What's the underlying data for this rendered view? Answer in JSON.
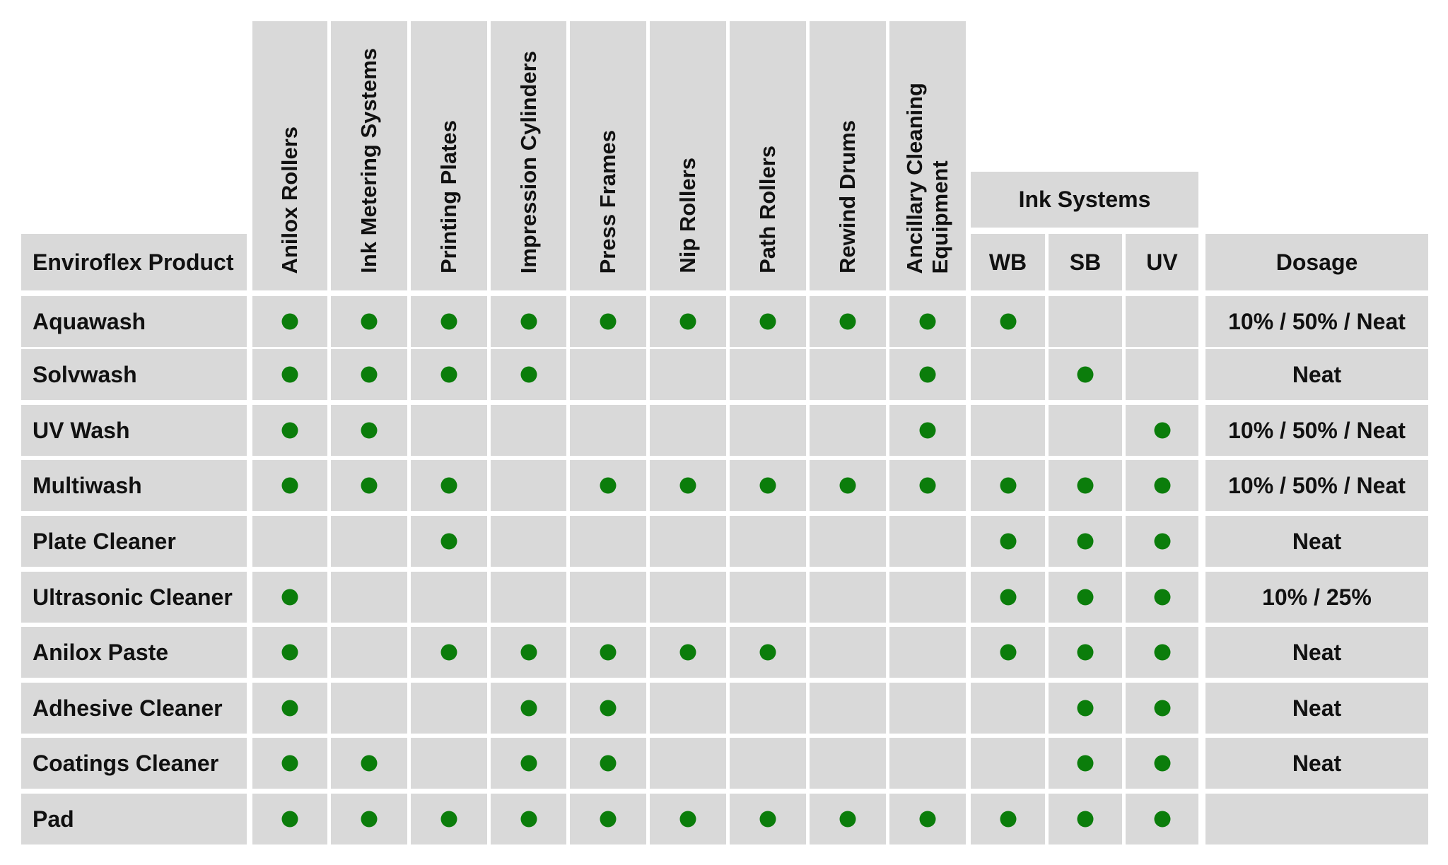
{
  "chart_data": {
    "type": "table",
    "corner_header": "Enviroflex Product",
    "group_header": "Ink Systems",
    "columns": [
      "Anilox Rollers",
      "Ink Metering Systems",
      "Printing Plates",
      "Impression Cylinders",
      "Press Frames",
      "Nip Rollers",
      "Path Rollers",
      "Rewind Drums",
      "Ancillary Cleaning\nEquipment",
      "WB",
      "SB",
      "UV"
    ],
    "dosage_header": "Dosage",
    "rows": [
      {
        "product": "Aquawash",
        "marks": [
          1,
          1,
          1,
          1,
          1,
          1,
          1,
          1,
          1,
          1,
          0,
          0
        ],
        "dosage": "10% / 50% / Neat"
      },
      {
        "product": "Solvwash",
        "marks": [
          1,
          1,
          1,
          1,
          0,
          0,
          0,
          0,
          1,
          0,
          1,
          0
        ],
        "dosage": "Neat"
      },
      {
        "product": "UV Wash",
        "marks": [
          1,
          1,
          0,
          0,
          0,
          0,
          0,
          0,
          1,
          0,
          0,
          1
        ],
        "dosage": "10% / 50% / Neat"
      },
      {
        "product": "Multiwash",
        "marks": [
          1,
          1,
          1,
          0,
          1,
          1,
          1,
          1,
          1,
          1,
          1,
          1
        ],
        "dosage": "10% / 50% / Neat"
      },
      {
        "product": "Plate Cleaner",
        "marks": [
          0,
          0,
          1,
          0,
          0,
          0,
          0,
          0,
          0,
          1,
          1,
          1
        ],
        "dosage": "Neat"
      },
      {
        "product": "Ultrasonic Cleaner",
        "marks": [
          1,
          0,
          0,
          0,
          0,
          0,
          0,
          0,
          0,
          1,
          1,
          1
        ],
        "dosage": "10% / 25%"
      },
      {
        "product": "Anilox Paste",
        "marks": [
          1,
          0,
          1,
          1,
          1,
          1,
          1,
          0,
          0,
          1,
          1,
          1
        ],
        "dosage": "Neat"
      },
      {
        "product": "Adhesive Cleaner",
        "marks": [
          1,
          0,
          0,
          1,
          1,
          0,
          0,
          0,
          0,
          0,
          1,
          1
        ],
        "dosage": "Neat"
      },
      {
        "product": "Coatings Cleaner",
        "marks": [
          1,
          1,
          0,
          1,
          1,
          0,
          0,
          0,
          0,
          0,
          1,
          1
        ],
        "dosage": "Neat"
      },
      {
        "product": "Pad",
        "marks": [
          1,
          1,
          1,
          1,
          1,
          1,
          1,
          1,
          1,
          1,
          1,
          1
        ],
        "dosage": ""
      }
    ]
  },
  "colors": {
    "cell_fill": "#d9d9d9",
    "dot": "#0b7d0b",
    "background": "#ffffff"
  }
}
